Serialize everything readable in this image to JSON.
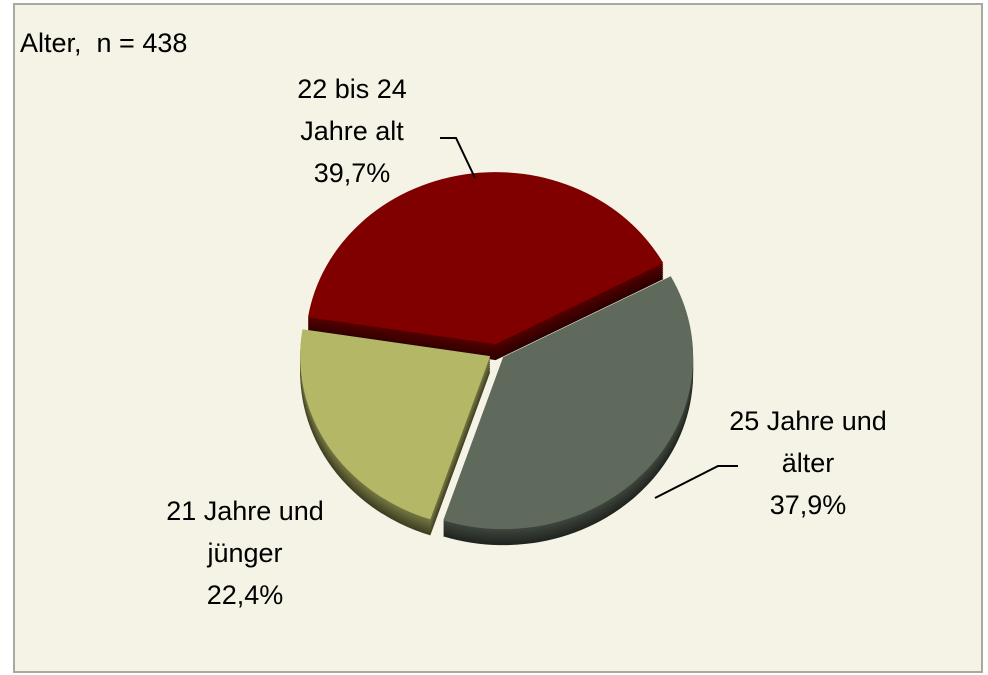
{
  "chart_data": {
    "type": "pie",
    "title": "Alter,  n = 438",
    "categories": [
      "22 bis 24 Jahre alt",
      "25 Jahre und älter",
      "21 Jahre und jünger"
    ],
    "values": [
      39.7,
      37.9,
      22.4
    ],
    "value_labels": [
      "39,7%",
      "37,9%",
      "22,4%"
    ],
    "colors": [
      "#800000",
      "#5f6a5c",
      "#b4b765"
    ]
  }
}
